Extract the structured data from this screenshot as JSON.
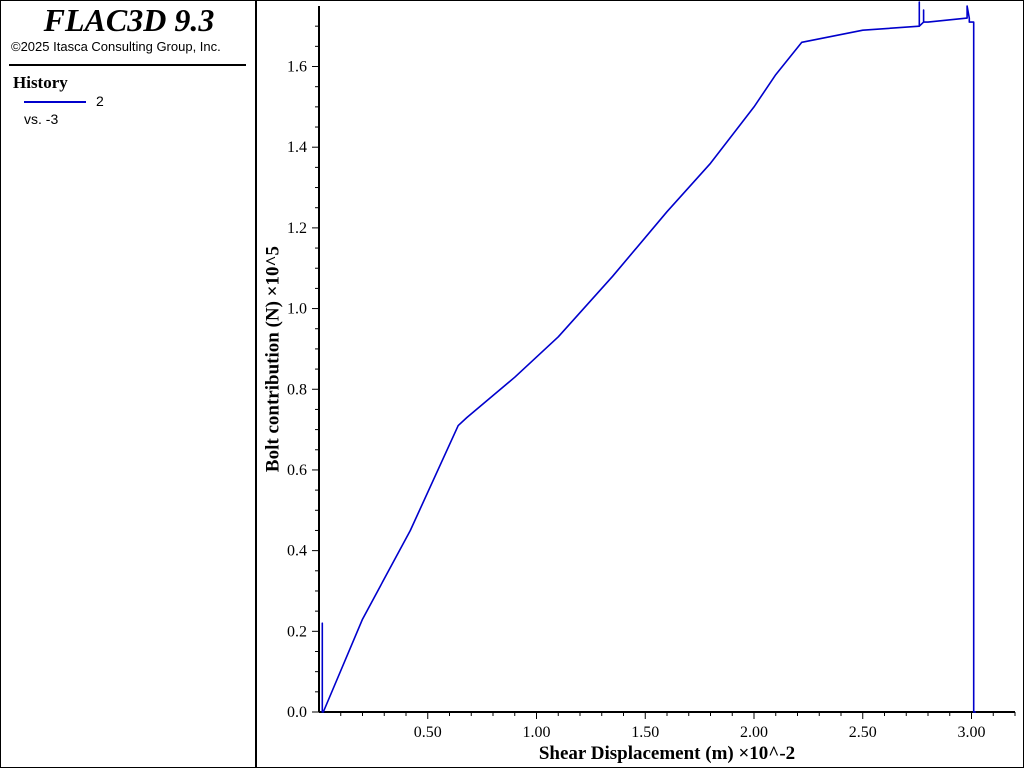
{
  "app": {
    "title": "FLAC3D 9.3",
    "copyright": "©2025 Itasca Consulting Group, Inc."
  },
  "legend": {
    "heading": "History",
    "series_label": "2",
    "vs_label": "vs. -3",
    "line_color": "#0000cc"
  },
  "chart_data": {
    "type": "line",
    "xlabel": "Shear Displacement (m) ×10^-2",
    "ylabel": "Bolt contribution (N) ×10^5",
    "xlim": [
      0.0,
      3.2
    ],
    "ylim": [
      0.0,
      1.75
    ],
    "x_ticks": [
      0.5,
      1.0,
      1.5,
      2.0,
      2.5,
      3.0
    ],
    "x_tick_labels": [
      "0.50",
      "1.00",
      "1.50",
      "2.00",
      "2.50",
      "3.00"
    ],
    "y_ticks": [
      0.0,
      0.2,
      0.4,
      0.6,
      0.8,
      1.0,
      1.2,
      1.4,
      1.6
    ],
    "y_tick_labels": [
      "0.0",
      "0.2",
      "0.4",
      "0.6",
      "0.8",
      "1.0",
      "1.2",
      "1.4",
      "1.6"
    ],
    "grid": false,
    "series": [
      {
        "color": "#0000cc",
        "x": [
          0.015,
          0.015,
          0.015,
          0.02,
          0.2,
          0.42,
          0.64,
          0.68,
          0.9,
          1.1,
          1.35,
          1.6,
          1.8,
          2.0,
          2.1,
          2.22,
          2.5,
          2.76,
          2.76,
          2.76,
          2.78,
          2.78,
          2.78,
          2.8,
          2.98,
          2.98,
          2.99,
          2.99,
          3.01,
          3.01,
          3.02
        ],
        "y": [
          0.0,
          0.22,
          0.0,
          0.0,
          0.23,
          0.45,
          0.71,
          0.73,
          0.83,
          0.93,
          1.08,
          1.24,
          1.36,
          1.5,
          1.58,
          1.66,
          1.69,
          1.7,
          1.76,
          1.7,
          1.71,
          1.74,
          1.71,
          1.71,
          1.72,
          1.75,
          1.72,
          1.71,
          1.71,
          0.0,
          0.0
        ]
      }
    ]
  }
}
